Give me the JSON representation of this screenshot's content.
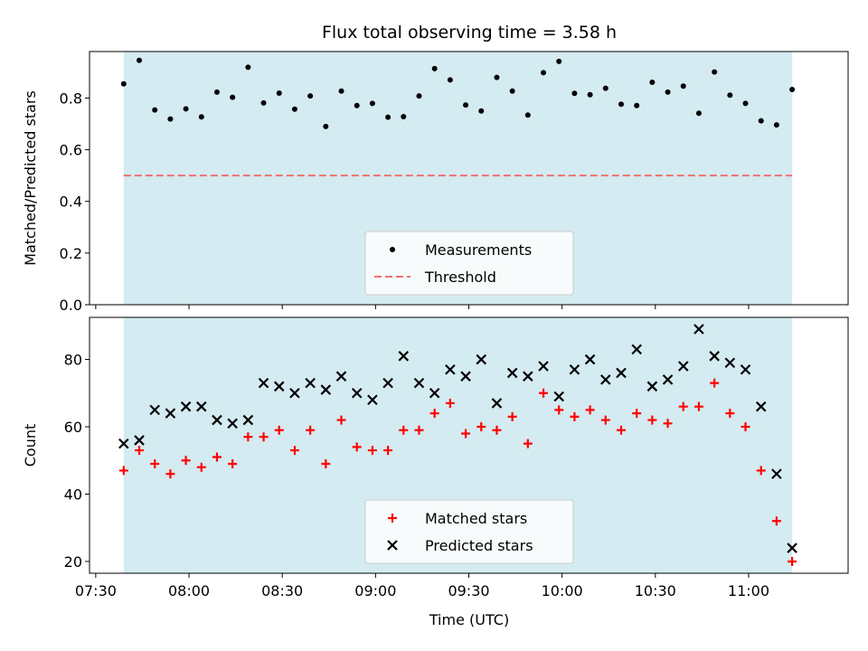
{
  "chart_data": [
    {
      "type": "scatter",
      "title": "Flux total observing time = 3.58 h",
      "xlabel": "",
      "ylabel": "Matched/Predicted stars",
      "xlim": [
        "07:28",
        "11:32"
      ],
      "ylim": [
        0,
        0.98
      ],
      "y_ticks": [
        "0.0",
        "0.2",
        "0.4",
        "0.6",
        "0.8"
      ],
      "y_tick_values": [
        0,
        0.2,
        0.4,
        0.6,
        0.8
      ],
      "observing_window": [
        "07:39",
        "11:14"
      ],
      "observing_window_color": "#d4ebf1",
      "threshold": 0.5,
      "threshold_color": "#f07070",
      "legend": {
        "position": "lower center",
        "entries": [
          "Measurements",
          "Threshold"
        ]
      },
      "series": [
        {
          "name": "Measurements",
          "marker": "dot",
          "color": "#000000",
          "x": [
            "07:39",
            "07:44",
            "07:49",
            "07:54",
            "07:59",
            "08:04",
            "08:09",
            "08:14",
            "08:19",
            "08:24",
            "08:29",
            "08:34",
            "08:39",
            "08:44",
            "08:49",
            "08:54",
            "08:59",
            "09:04",
            "09:09",
            "09:14",
            "09:19",
            "09:24",
            "09:29",
            "09:34",
            "09:39",
            "09:44",
            "09:49",
            "09:54",
            "09:59",
            "10:04",
            "10:09",
            "10:14",
            "10:19",
            "10:24",
            "10:29",
            "10:34",
            "10:39",
            "10:44",
            "10:49",
            "10:54",
            "10:59",
            "11:04",
            "11:09",
            "11:14"
          ],
          "y": [
            0.855,
            0.946,
            0.754,
            0.719,
            0.758,
            0.727,
            0.823,
            0.803,
            0.919,
            0.781,
            0.819,
            0.757,
            0.808,
            0.69,
            0.827,
            0.771,
            0.779,
            0.726,
            0.728,
            0.808,
            0.914,
            0.87,
            0.773,
            0.75,
            0.88,
            0.827,
            0.734,
            0.898,
            0.942,
            0.818,
            0.813,
            0.838,
            0.776,
            0.771,
            0.861,
            0.823,
            0.846,
            0.741,
            0.901,
            0.811,
            0.779,
            0.712,
            0.696,
            0.833
          ]
        }
      ]
    },
    {
      "type": "scatter",
      "title": "",
      "xlabel": "Time (UTC)",
      "ylabel": "Count",
      "xlim": [
        "07:28",
        "11:32"
      ],
      "x_ticks": [
        "07:30",
        "08:00",
        "08:30",
        "09:00",
        "09:30",
        "10:00",
        "10:30",
        "11:00"
      ],
      "ylim": [
        16.5,
        92.5
      ],
      "y_ticks": [
        "20",
        "40",
        "60",
        "80"
      ],
      "y_tick_values": [
        20,
        40,
        60,
        80
      ],
      "observing_window": [
        "07:39",
        "11:14"
      ],
      "observing_window_color": "#d4ebf1",
      "legend": {
        "position": "lower center",
        "entries": [
          "Matched stars",
          "Predicted stars"
        ]
      },
      "x": [
        "07:39",
        "07:44",
        "07:49",
        "07:54",
        "07:59",
        "08:04",
        "08:09",
        "08:14",
        "08:19",
        "08:24",
        "08:29",
        "08:34",
        "08:39",
        "08:44",
        "08:49",
        "08:54",
        "08:59",
        "09:04",
        "09:09",
        "09:14",
        "09:19",
        "09:24",
        "09:29",
        "09:34",
        "09:39",
        "09:44",
        "09:49",
        "09:54",
        "09:59",
        "10:04",
        "10:09",
        "10:14",
        "10:19",
        "10:24",
        "10:29",
        "10:34",
        "10:39",
        "10:44",
        "10:49",
        "10:54",
        "10:59",
        "11:04",
        "11:09",
        "11:14"
      ],
      "series": [
        {
          "name": "Matched stars",
          "marker": "plus",
          "color": "#ff0000",
          "values": [
            47,
            53,
            49,
            46,
            50,
            48,
            51,
            49,
            57,
            57,
            59,
            53,
            59,
            49,
            62,
            54,
            53,
            53,
            59,
            59,
            64,
            67,
            58,
            60,
            59,
            63,
            55,
            70,
            65,
            63,
            65,
            62,
            59,
            64,
            62,
            61,
            66,
            66,
            73,
            64,
            60,
            47,
            32,
            20
          ]
        },
        {
          "name": "Predicted stars",
          "marker": "x",
          "color": "#000000",
          "values": [
            55,
            56,
            65,
            64,
            66,
            66,
            62,
            61,
            62,
            73,
            72,
            70,
            73,
            71,
            75,
            70,
            68,
            73,
            81,
            73,
            70,
            77,
            75,
            80,
            67,
            76,
            75,
            78,
            69,
            77,
            80,
            74,
            76,
            83,
            72,
            74,
            78,
            89,
            81,
            79,
            77,
            66,
            46,
            24
          ]
        }
      ]
    }
  ]
}
